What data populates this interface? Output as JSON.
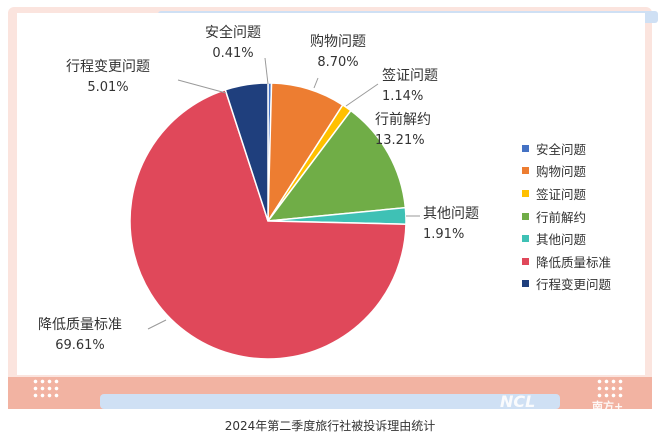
{
  "chart_data": {
    "type": "pie",
    "categories": [
      "安全问题",
      "购物问题",
      "签证问题",
      "行前解约",
      "其他问题",
      "降低质量标准",
      "行程变更问题"
    ],
    "values": [
      0.41,
      8.7,
      1.14,
      13.21,
      1.91,
      69.61,
      5.01
    ],
    "value_labels": [
      "0.41%",
      "8.70%",
      "1.14%",
      "13.21%",
      "1.91%",
      "69.61%",
      "5.01%"
    ],
    "colors": [
      "#4472c4",
      "#ed7d31",
      "#ffc000",
      "#70ad47",
      "#3fc1b5",
      "#e0485a",
      "#1f3f7d"
    ],
    "legend": [
      "安全问题",
      "购物问题",
      "签证问题",
      "行前解约",
      "其他问题",
      "降低质量标准",
      "行程变更问题"
    ],
    "legend_position": "right",
    "start_angle": "12 o'clock, clockwise"
  },
  "caption": "2024年第二季度旅行社被投诉理由统计",
  "watermark": {
    "text1": "NCL",
    "text2": "南方+"
  }
}
